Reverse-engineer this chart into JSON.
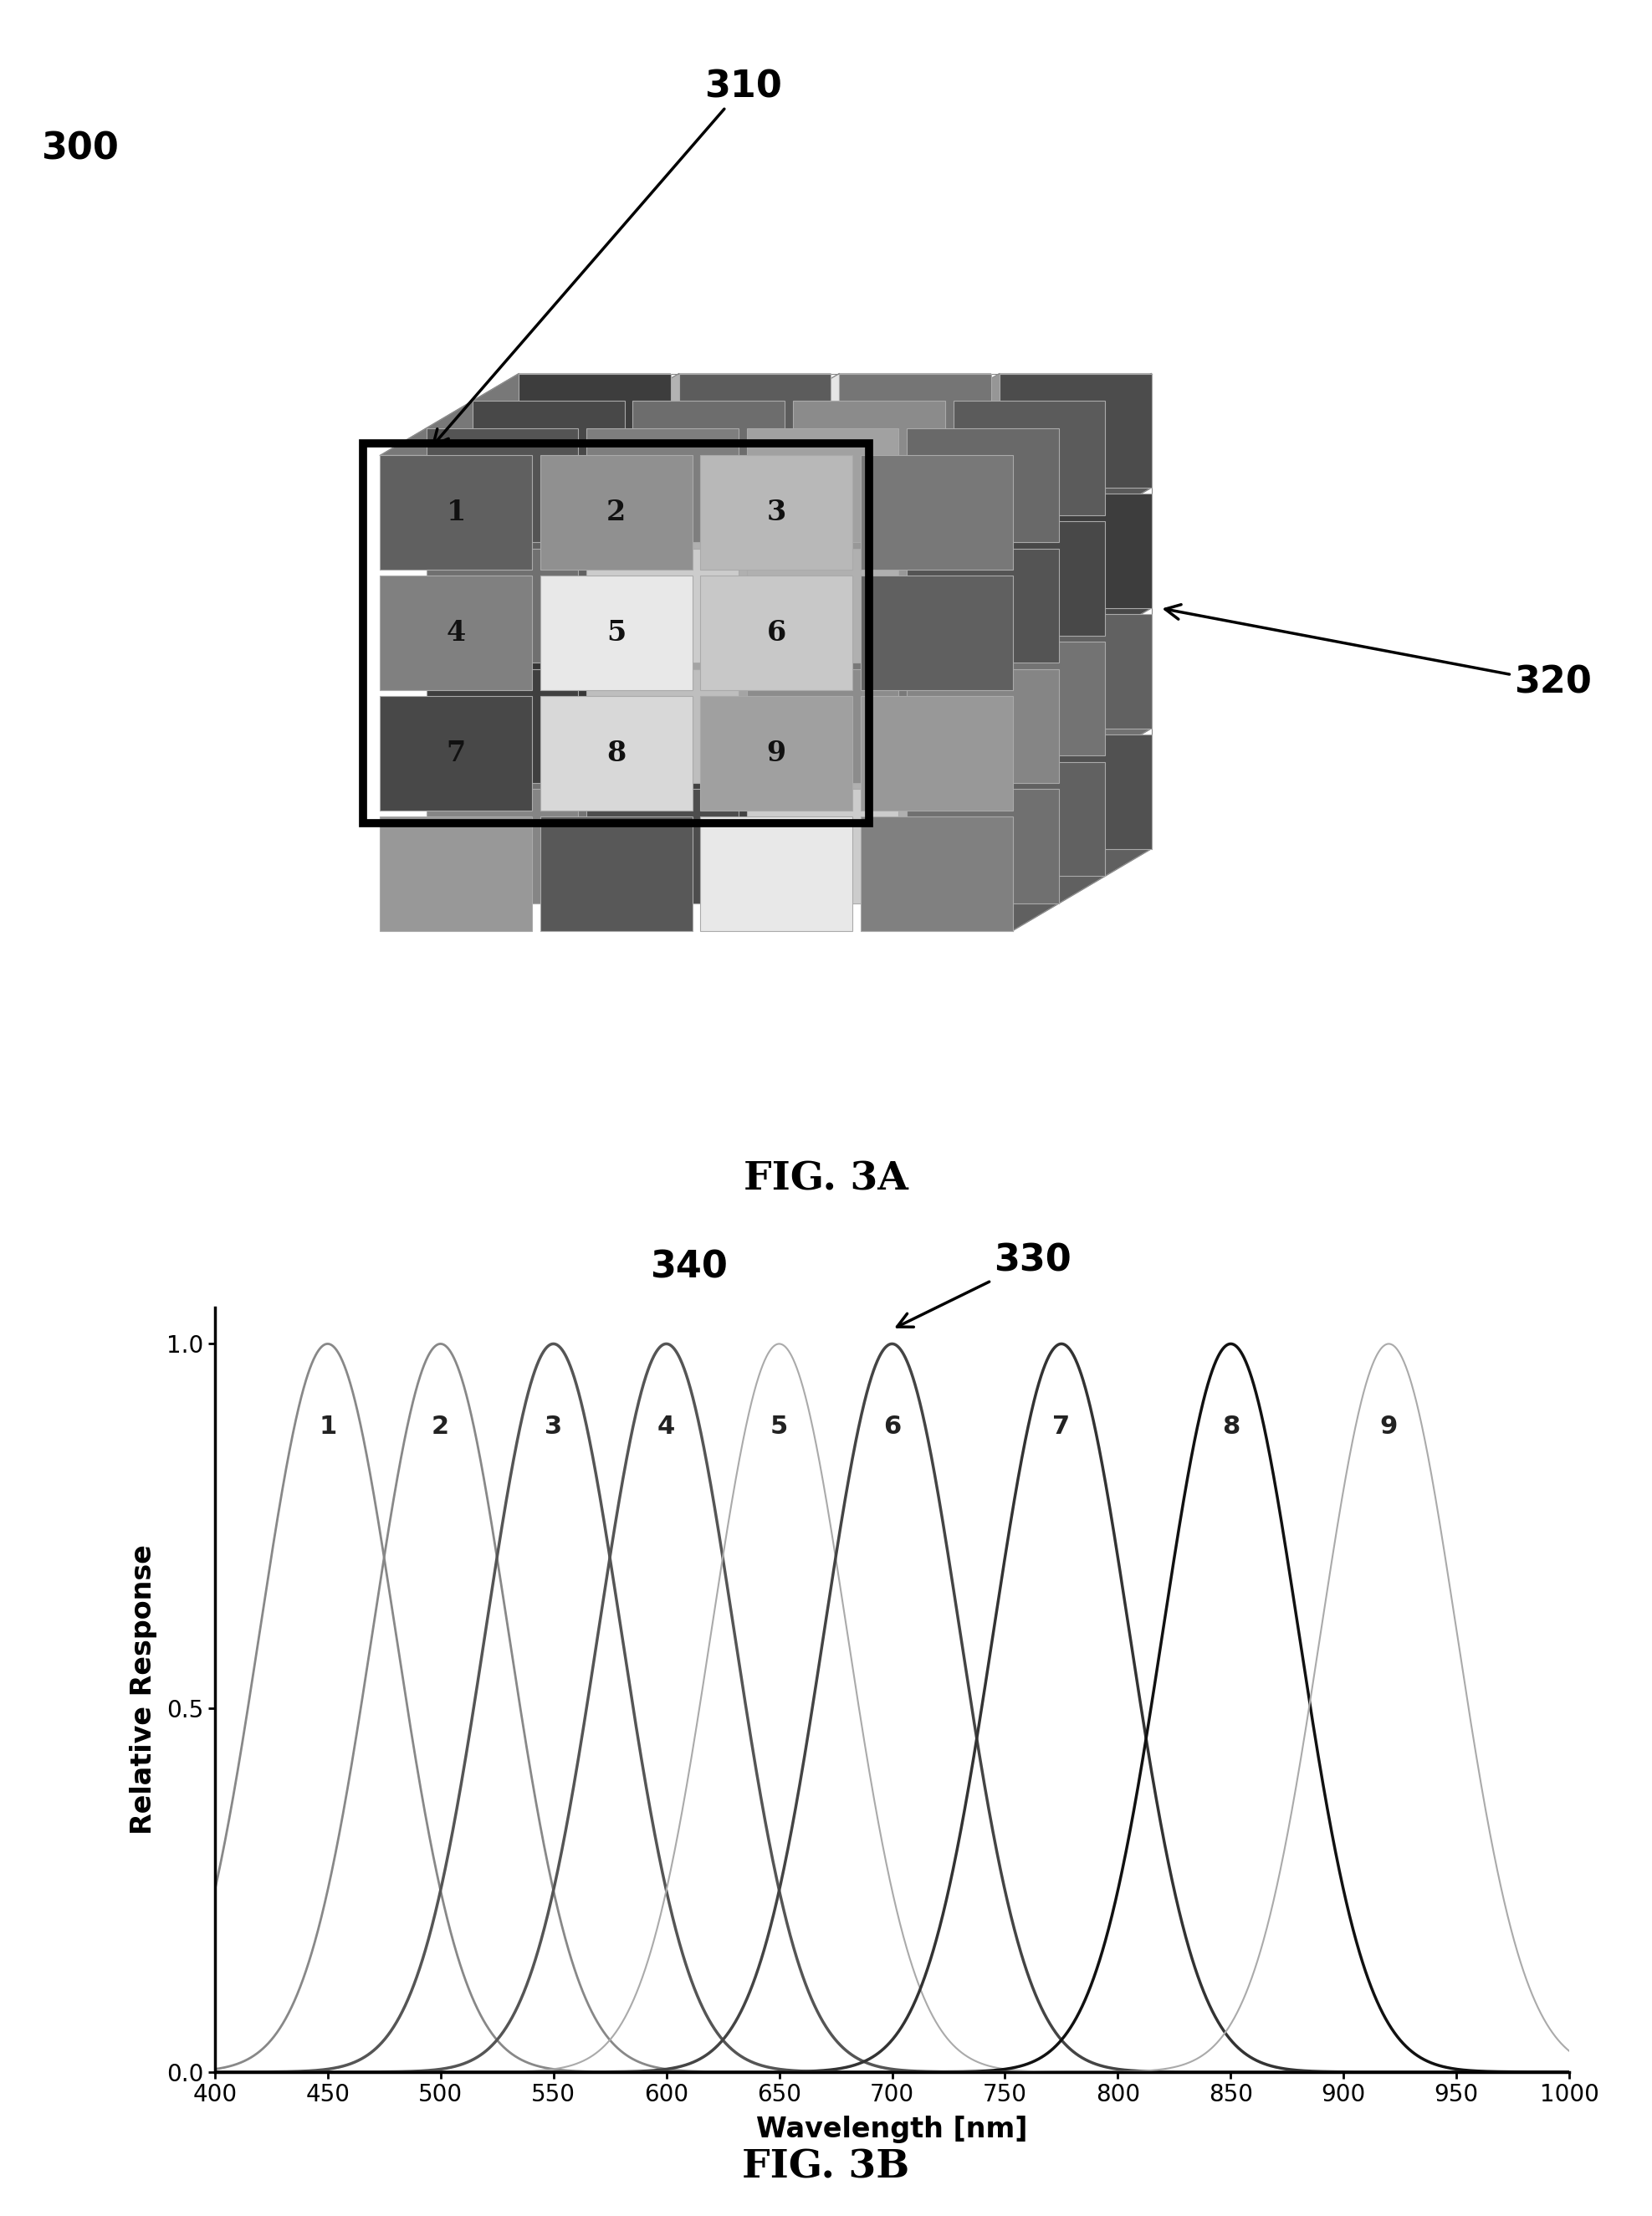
{
  "fig3a_label": "FIG. 3A",
  "fig3b_label": "FIG. 3B",
  "label_300": "300",
  "label_310": "310",
  "label_320": "320",
  "label_330": "330",
  "label_340": "340",
  "grid_numbers": [
    "1",
    "2",
    "3",
    "4",
    "5",
    "6",
    "7",
    "8",
    "9"
  ],
  "front_grid": [
    [
      "#606060",
      "#909090",
      "#b8b8b8",
      "#787878"
    ],
    [
      "#808080",
      "#e8e8e8",
      "#c8c8c8",
      "#606060"
    ],
    [
      "#484848",
      "#d8d8d8",
      "#a0a0a0",
      "#989898"
    ],
    [
      "#989898",
      "#585858",
      "#e8e8e8",
      "#808080"
    ]
  ],
  "peak_wavelengths": [
    450,
    500,
    550,
    600,
    650,
    700,
    775,
    850,
    920
  ],
  "channel_colors": [
    "#888888",
    "#888888",
    "#555555",
    "#555555",
    "#aaaaaa",
    "#444444",
    "#333333",
    "#111111",
    "#aaaaaa"
  ],
  "channel_lw": [
    2.0,
    2.0,
    2.5,
    2.5,
    1.5,
    2.5,
    2.5,
    2.5,
    1.5
  ],
  "sigma": 30,
  "xlabel": "Wavelength [nm]",
  "ylabel": "Relative Response",
  "yticks": [
    0.0,
    0.5,
    1.0
  ],
  "xticks": [
    400,
    450,
    500,
    550,
    600,
    650,
    700,
    750,
    800,
    850,
    900,
    950,
    1000
  ],
  "xlim": [
    400,
    1000
  ],
  "ylim": [
    0.0,
    1.05
  ]
}
